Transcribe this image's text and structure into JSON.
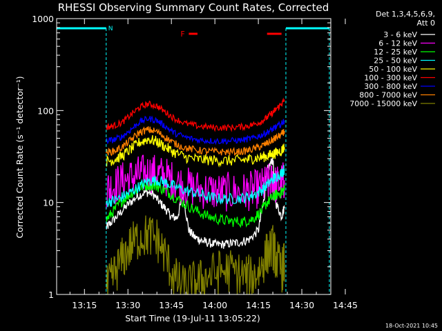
{
  "chart_data": {
    "type": "line",
    "title": "RHESSI Observing Summary Count Rates, Corrected",
    "xlabel": "Start Time (19-Jul-11 13:05:22)",
    "ylabel": "Corrected Count Rate (s⁻¹ detector⁻¹)",
    "yscale": "log",
    "xlim_minutes": [
      5.4,
      100
    ],
    "ylim": [
      1,
      1000
    ],
    "x_ticks": [
      {
        "min": 15,
        "label": "13:15"
      },
      {
        "min": 30,
        "label": "13:30"
      },
      {
        "min": 45,
        "label": "13:45"
      },
      {
        "min": 60,
        "label": "14:00"
      },
      {
        "min": 75,
        "label": "14:15"
      },
      {
        "min": 90,
        "label": "14:30"
      },
      {
        "min": 105,
        "label": "14:45"
      }
    ],
    "y_ticks": [
      {
        "value": 1,
        "label": "1"
      },
      {
        "value": 10,
        "label": "10"
      },
      {
        "value": 100,
        "label": "100"
      },
      {
        "value": 1000,
        "label": "1000"
      }
    ],
    "legend_header": [
      "Det 1,3,4,5,6,9,",
      "Att 0"
    ],
    "legend_position": "right",
    "series": [
      {
        "name": "3 - 6 keV",
        "color": "#ffffff",
        "x": [
          22.5,
          24,
          27,
          30,
          33,
          36,
          38.5,
          41,
          43,
          45,
          47,
          49,
          51,
          53,
          55,
          57,
          60,
          63,
          66,
          69,
          72,
          75,
          77,
          78,
          80,
          81,
          83,
          84
        ],
        "y": [
          5.3,
          6.0,
          7.5,
          9.5,
          11.5,
          13.0,
          12.5,
          10.0,
          8.5,
          7.0,
          6.8,
          12.0,
          5.0,
          4.2,
          3.9,
          3.7,
          3.5,
          3.5,
          3.6,
          3.7,
          4.0,
          5.0,
          11,
          22,
          30,
          10,
          7,
          9
        ]
      },
      {
        "name": "6 - 12 keV",
        "color": "#ff00ff",
        "x": [
          22.5,
          25,
          28,
          31,
          34,
          37,
          40,
          43,
          46,
          50,
          54,
          58,
          62,
          66,
          70,
          73,
          76,
          78,
          80,
          81,
          83,
          84
        ],
        "y": [
          14,
          15,
          17,
          18.5,
          20,
          21,
          20.5,
          19,
          17,
          15,
          14,
          13.5,
          13,
          13,
          13,
          13.5,
          14.5,
          16,
          16.5,
          15.5,
          16.5,
          17.5
        ]
      },
      {
        "name": "12 - 25 keV",
        "color": "#00ff00",
        "x": [
          22.5,
          25,
          28,
          31,
          34,
          37,
          40,
          43,
          46,
          50,
          54,
          58,
          62,
          66,
          70,
          73,
          76,
          78,
          80,
          81,
          83,
          84
        ],
        "y": [
          6.5,
          8.0,
          10.5,
          12.5,
          14.5,
          15.5,
          15.0,
          13.5,
          11.5,
          9.5,
          8.0,
          7.0,
          6.5,
          6.2,
          6.2,
          6.6,
          8.0,
          10.0,
          11.5,
          12.0,
          13.0,
          14.0
        ]
      },
      {
        "name": "25 - 50 keV",
        "color": "#00ffff",
        "x": [
          22.5,
          25,
          28,
          31,
          34,
          37,
          40,
          43,
          46,
          50,
          54,
          58,
          62,
          66,
          70,
          73,
          76,
          78,
          80,
          81,
          83,
          84
        ],
        "y": [
          10,
          10.5,
          11.5,
          13,
          15,
          17,
          17.5,
          16.5,
          15,
          13.5,
          12.5,
          11.5,
          11,
          11,
          11.2,
          12,
          13.5,
          15.5,
          18,
          19,
          21,
          23
        ]
      },
      {
        "name": "50 - 100 keV",
        "color": "#ffff00",
        "x": [
          22.5,
          25,
          28,
          31,
          34,
          37,
          40,
          43,
          46,
          50,
          54,
          58,
          62,
          66,
          70,
          73,
          76,
          78,
          80,
          81,
          83,
          84
        ],
        "y": [
          28,
          29,
          32,
          38,
          45,
          49,
          46,
          40,
          35,
          31,
          29.5,
          29,
          28.5,
          28.5,
          29,
          30,
          31,
          32,
          33.5,
          34.5,
          37,
          40
        ]
      },
      {
        "name": "100 - 300 keV",
        "color": "#ff0000",
        "x": [
          22.5,
          25,
          28,
          31,
          34,
          37,
          40,
          43,
          46,
          50,
          54,
          58,
          62,
          66,
          70,
          73,
          76,
          78,
          80,
          81,
          83,
          84
        ],
        "y": [
          66,
          68,
          74,
          90,
          108,
          118,
          112,
          96,
          82,
          72,
          68,
          66,
          65,
          65.5,
          67,
          70,
          76,
          84,
          95,
          103,
          118,
          132
        ]
      },
      {
        "name": "300 - 800 keV",
        "color": "#0000ff",
        "x": [
          22.5,
          25,
          28,
          31,
          34,
          37,
          40,
          43,
          46,
          50,
          54,
          58,
          62,
          66,
          70,
          73,
          76,
          78,
          80,
          81,
          83,
          84
        ],
        "y": [
          47,
          48,
          52,
          62,
          75,
          82,
          78,
          67,
          57,
          51,
          48,
          47,
          46.5,
          47,
          48,
          50,
          54,
          58,
          63,
          66,
          72,
          78
        ]
      },
      {
        "name": "800 - 7000 keV",
        "color": "#ff8000",
        "x": [
          22.5,
          25,
          28,
          31,
          34,
          37,
          40,
          43,
          46,
          50,
          54,
          58,
          62,
          66,
          70,
          73,
          76,
          78,
          80,
          81,
          83,
          84
        ],
        "y": [
          35,
          36,
          40,
          48,
          58,
          62,
          59,
          51,
          44,
          39,
          37,
          36,
          35.5,
          35.5,
          36,
          38,
          41,
          44,
          48,
          50,
          55,
          60
        ]
      },
      {
        "name": "7000 - 15000 keV",
        "color": "#808000",
        "x": [
          22.5,
          25,
          28,
          31,
          34,
          37,
          40,
          43,
          46,
          49,
          52,
          55,
          58,
          62,
          66,
          70,
          73,
          76,
          78,
          80,
          81,
          83,
          84
        ],
        "y": [
          1.1,
          1.6,
          2.4,
          3.4,
          4.2,
          4.4,
          4.0,
          2.6,
          1.5,
          1.2,
          1.3,
          1.4,
          1.6,
          1.8,
          1.8,
          1.6,
          1.5,
          2.0,
          2.8,
          3.3,
          2.5,
          1.8,
          2.2
        ]
      }
    ],
    "night_intervals": [
      {
        "start": 5.4,
        "end": 22.5,
        "label": "N",
        "color": "#00ffff"
      },
      {
        "start": 84.5,
        "end": 99.5,
        "label": "",
        "color": "#00ffff"
      }
    ],
    "flare_markers": [
      {
        "start": 51,
        "end": 54,
        "label": "F",
        "color": "#ff0000"
      },
      {
        "start": 78,
        "end": 83,
        "label": "",
        "color": "#ff0000"
      }
    ],
    "timestamp": "18-Oct-2021 10:45"
  }
}
